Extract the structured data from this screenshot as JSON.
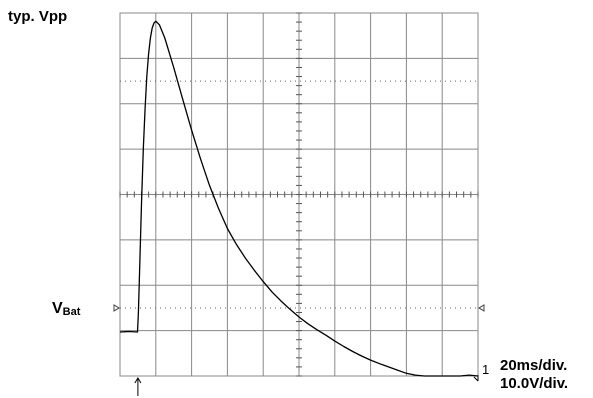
{
  "labels": {
    "top_left": "typ. Vpp",
    "vbat_main": "V",
    "vbat_sub": "Bat",
    "time_div": "20ms/div.",
    "volt_div": "10.0V/div.",
    "channel_marker": "1"
  },
  "chart_data": {
    "type": "line",
    "title": "",
    "xlabel": "",
    "ylabel": "",
    "x_unit": "ms",
    "y_unit": "V",
    "time_per_div": 20,
    "volts_per_div": 10,
    "divisions": {
      "x": 10,
      "y": 8
    },
    "xlim": [
      0,
      200
    ],
    "ylim": [
      -40,
      40
    ],
    "grid": true,
    "grid_color": "#888888",
    "trace_color": "#000000",
    "trigger_x": 10.0,
    "vbat_level": -30.3,
    "series": [
      {
        "name": "",
        "x": [
          0,
          5,
          9.8,
          10.3,
          11,
          12,
          13,
          14,
          15,
          16,
          17,
          18,
          19,
          20,
          22,
          25,
          30,
          35,
          40,
          45,
          50,
          55,
          60,
          65,
          70,
          75,
          80,
          85,
          90,
          95,
          100,
          105,
          110,
          115,
          120,
          125,
          130,
          135,
          140,
          145,
          150,
          155,
          160,
          165,
          170,
          175,
          180,
          185,
          190,
          195,
          200
        ],
        "y": [
          -30.3,
          -30.2,
          -30.3,
          -26,
          -16,
          -2,
          10,
          19,
          26,
          31,
          34.5,
          36.7,
          37.8,
          38.2,
          37.4,
          34.5,
          28,
          21,
          14.2,
          7.8,
          2,
          -3,
          -7.5,
          -11,
          -14,
          -16.7,
          -19.2,
          -21.5,
          -23.5,
          -25.3,
          -27,
          -28.5,
          -29.8,
          -31,
          -32.3,
          -33.5,
          -34.6,
          -35.6,
          -36.5,
          -37.3,
          -38,
          -38.7,
          -39.4,
          -39.8,
          -40,
          -40,
          -40,
          -40,
          -40,
          -39.8,
          -40
        ]
      }
    ]
  }
}
